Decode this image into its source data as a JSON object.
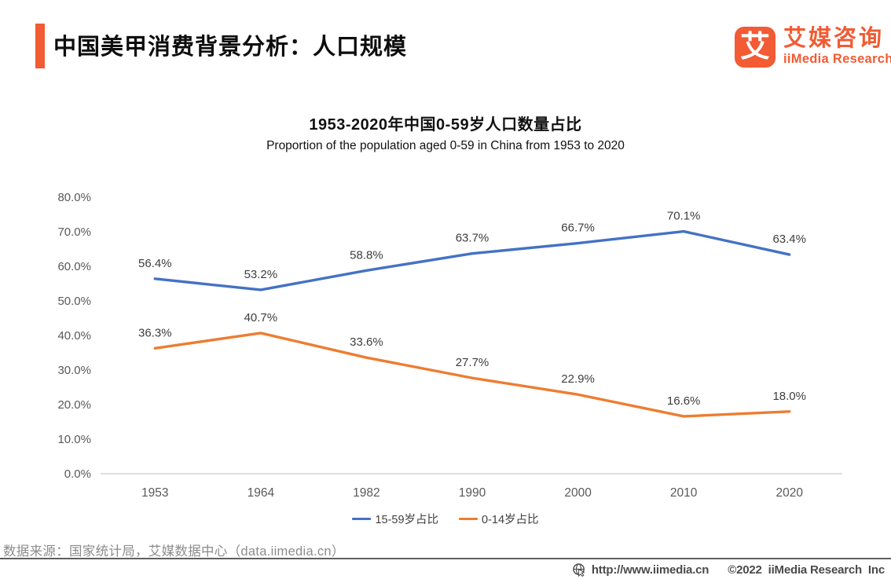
{
  "colors": {
    "brand_orange": "#F25B33",
    "line_blue": "#4472C4",
    "line_orange": "#ED7D31",
    "axis_text": "#595959",
    "axis_line": "#d6d6d6"
  },
  "header": {
    "title": "中国美甲消费背景分析：人口规模",
    "logo": {
      "glyph": "艾",
      "name_cn": "艾媒咨询",
      "name_en": "iiMedia Research"
    }
  },
  "chart_data": {
    "type": "line",
    "title": "1953-2020年中国0-59岁人口数量占比",
    "subtitle": "Proportion of the population aged 0-59 in China from 1953 to 2020",
    "categories": [
      "1953",
      "1964",
      "1982",
      "1990",
      "2000",
      "2010",
      "2020"
    ],
    "series": [
      {
        "name": "15-59岁占比",
        "color": "#4472C4",
        "values": [
          56.4,
          53.2,
          58.8,
          63.7,
          66.7,
          70.1,
          63.4
        ]
      },
      {
        "name": "0-14岁占比",
        "color": "#ED7D31",
        "values": [
          36.3,
          40.7,
          33.6,
          27.7,
          22.9,
          16.6,
          18.0
        ]
      }
    ],
    "xlabel": "",
    "ylabel": "",
    "ylim": [
      0,
      80
    ],
    "ytick_step": 10,
    "ytick_format": "0.0%",
    "data_label_format": "0.0%",
    "grid": false,
    "data_labels": true,
    "legend_position": "bottom"
  },
  "footer": {
    "source": "数据来源：国家统计局，艾媒数据中心（data.iimedia.cn）",
    "url": "http://www.iimedia.cn",
    "copyright": "©2022  iiMedia Research  Inc"
  }
}
